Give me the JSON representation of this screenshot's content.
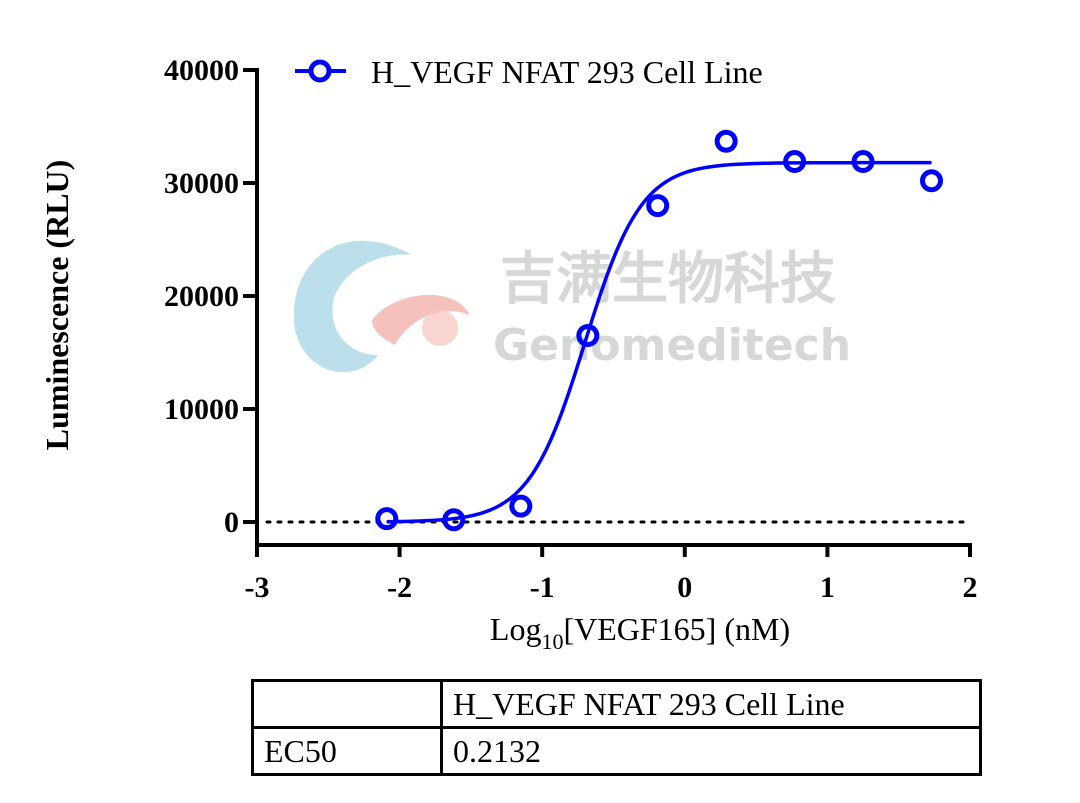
{
  "chart_data": {
    "type": "scatter",
    "ylabel": "Luminescence (RLU)",
    "xlabel": {
      "base": "Log",
      "sub": "10",
      "rest": "[VEGF165] (nM)"
    },
    "xlim": [
      -3,
      2
    ],
    "ylim": [
      0,
      40000
    ],
    "x_ticks": [
      -3,
      -2,
      -1,
      0,
      1,
      2
    ],
    "y_ticks": [
      0,
      10000,
      20000,
      30000,
      40000
    ],
    "x_tick_labels": [
      "-3",
      "-2",
      "-1",
      "0",
      "1",
      "2"
    ],
    "y_tick_labels": [
      "0",
      "10000",
      "20000",
      "30000",
      "40000"
    ],
    "legend_position": "top-left",
    "baseline_y": 0,
    "color": "#0000ff",
    "series": [
      {
        "name": "H_VEGF NFAT 293 Cell Line",
        "points": [
          {
            "x": -2.09,
            "y": 300
          },
          {
            "x": -1.62,
            "y": 200
          },
          {
            "x": -1.15,
            "y": 1400
          },
          {
            "x": -0.68,
            "y": 16500
          },
          {
            "x": -0.19,
            "y": 28000
          },
          {
            "x": 0.29,
            "y": 33700
          },
          {
            "x": 0.77,
            "y": 31900
          },
          {
            "x": 1.25,
            "y": 31900
          },
          {
            "x": 1.73,
            "y": 30200
          }
        ],
        "fit": {
          "model": "4PL",
          "bottom": 0,
          "top": 31800,
          "logEC50": -0.7,
          "hill": 2.2,
          "x_range": [
            -2.09,
            1.73
          ]
        }
      }
    ]
  },
  "watermark": {
    "cn": "吉满生物科技",
    "en": "Genomeditech"
  },
  "table": {
    "header": [
      "",
      "H_VEGF NFAT 293 Cell Line"
    ],
    "rows": [
      [
        "EC50",
        "0.2132"
      ]
    ]
  }
}
